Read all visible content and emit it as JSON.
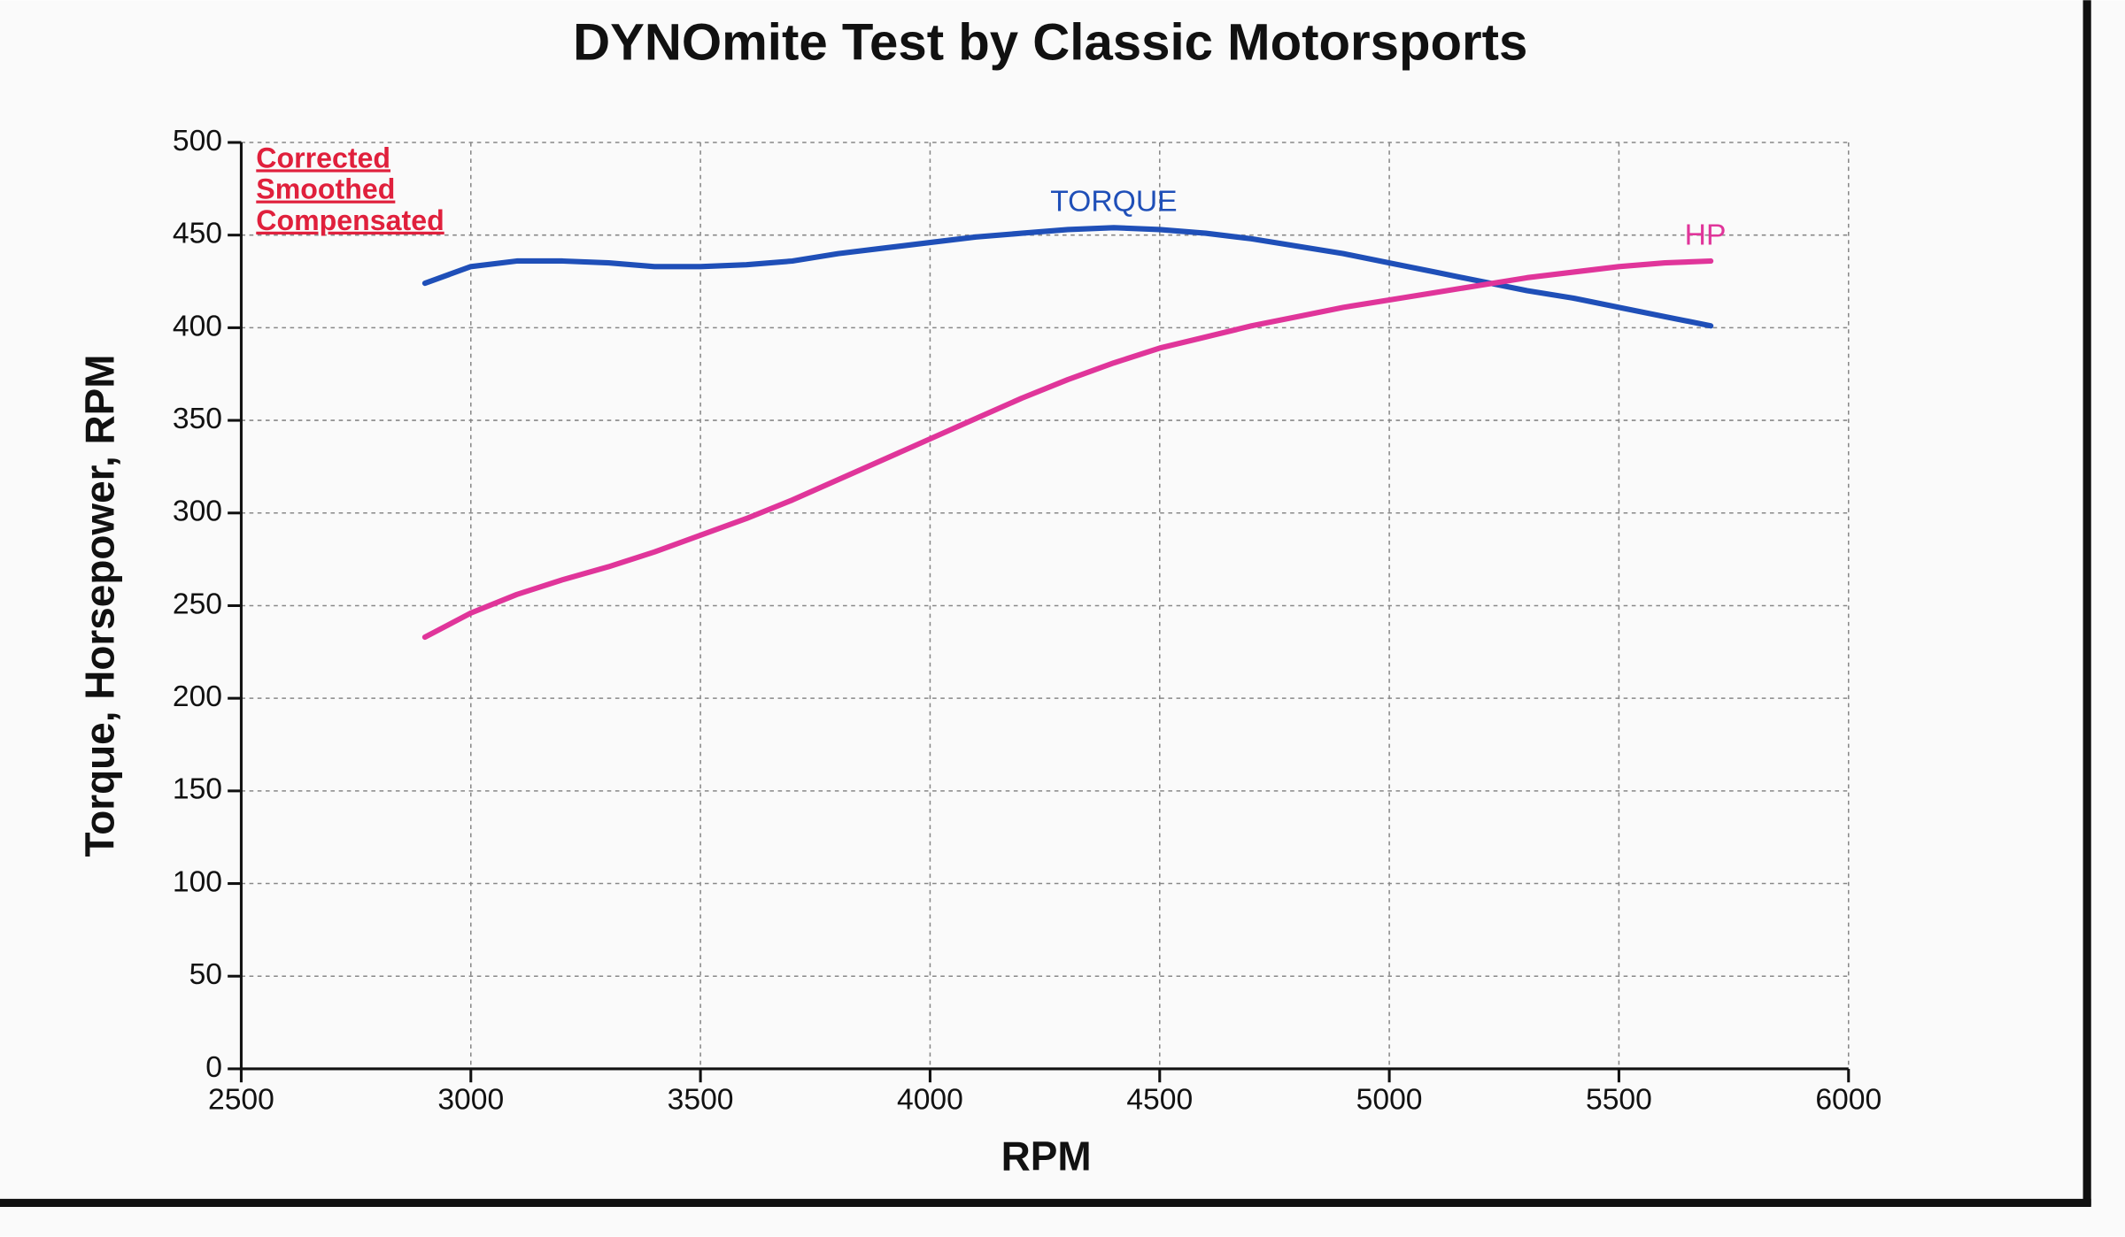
{
  "chart_data": {
    "type": "line",
    "title": "DYNOmite Test by Classic Motorsports",
    "xlabel": "RPM",
    "ylabel": "Torque, Horsepower, RPM",
    "annotations": [
      "Corrected",
      "Smoothed",
      "Compensated"
    ],
    "annotation_color": "#e0203c",
    "x": [
      2900,
      3000,
      3100,
      3200,
      3300,
      3400,
      3500,
      3600,
      3700,
      3800,
      3900,
      4000,
      4100,
      4200,
      4300,
      4400,
      4500,
      4600,
      4700,
      4800,
      4900,
      5000,
      5100,
      5200,
      5300,
      5400,
      5500,
      5600,
      5700
    ],
    "series": [
      {
        "name": "TORQUE",
        "color": "#1f4fb8",
        "values": [
          424,
          433,
          436,
          436,
          435,
          433,
          433,
          434,
          436,
          440,
          443,
          446,
          449,
          451,
          453,
          454,
          453,
          451,
          448,
          444,
          440,
          435,
          430,
          425,
          420,
          416,
          411,
          406,
          401
        ]
      },
      {
        "name": "HP",
        "color": "#e0359a",
        "values": [
          233,
          246,
          256,
          264,
          271,
          279,
          288,
          297,
          307,
          318,
          329,
          340,
          351,
          362,
          372,
          381,
          389,
          395,
          401,
          406,
          411,
          415,
          419,
          423,
          427,
          430,
          433,
          435,
          436
        ]
      }
    ],
    "xlim": [
      2500,
      6000
    ],
    "xticks": [
      2500,
      3000,
      3500,
      4000,
      4500,
      5000,
      5500,
      6000
    ],
    "ylim": [
      0,
      500
    ],
    "yticks": [
      0,
      50,
      100,
      150,
      200,
      250,
      300,
      350,
      400,
      450,
      500
    ],
    "grid": true
  }
}
